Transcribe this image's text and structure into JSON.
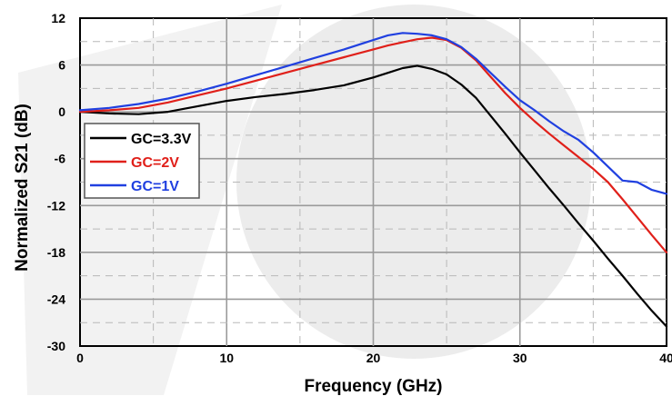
{
  "chart_data": {
    "type": "line",
    "xlabel": "Frequency (GHz)",
    "ylabel": "Normalized S21 (dB)",
    "xlim": [
      0,
      40
    ],
    "ylim": [
      -30,
      12
    ],
    "xticks": [
      "0",
      "10",
      "20",
      "30",
      "40"
    ],
    "yticks": [
      "12",
      "6",
      "0",
      "-6",
      "-12",
      "-18",
      "-24",
      "-30"
    ],
    "grid": true,
    "legend_position": "left",
    "series": [
      {
        "name": "GC=3.3V",
        "color": "#000000",
        "x": [
          0,
          2,
          4,
          6,
          8,
          10,
          12,
          14,
          16,
          18,
          20,
          21,
          22,
          23,
          24,
          25,
          26,
          27,
          28,
          29,
          30,
          31,
          32,
          33,
          34,
          35,
          36,
          37,
          38,
          39,
          40
        ],
        "y": [
          0,
          -0.2,
          -0.3,
          0,
          0.7,
          1.4,
          1.9,
          2.3,
          2.8,
          3.4,
          4.4,
          5.0,
          5.6,
          5.9,
          5.5,
          4.8,
          3.5,
          1.8,
          -0.5,
          -2.8,
          -5.2,
          -7.5,
          -9.8,
          -12.0,
          -14.3,
          -16.5,
          -18.8,
          -21.0,
          -23.3,
          -25.5,
          -27.5
        ]
      },
      {
        "name": "GC=2V",
        "color": "#e0201a",
        "x": [
          0,
          2,
          4,
          6,
          8,
          10,
          12,
          14,
          16,
          18,
          20,
          21,
          22,
          23,
          24,
          25,
          26,
          27,
          28,
          29,
          30,
          31,
          32,
          33,
          34,
          35,
          36,
          37,
          38,
          39,
          40
        ],
        "y": [
          0,
          0.2,
          0.5,
          1.2,
          2.1,
          3.0,
          4.0,
          5.0,
          6.0,
          7.0,
          8.0,
          8.5,
          8.9,
          9.3,
          9.5,
          9.2,
          8.2,
          6.6,
          4.5,
          2.4,
          0.5,
          -1.2,
          -2.8,
          -4.3,
          -5.8,
          -7.3,
          -9.0,
          -11.2,
          -13.5,
          -15.8,
          -18.0
        ]
      },
      {
        "name": "GC=1V",
        "color": "#2040e0",
        "x": [
          0,
          2,
          4,
          6,
          8,
          10,
          12,
          14,
          16,
          18,
          20,
          21,
          22,
          23,
          24,
          25,
          26,
          27,
          28,
          29,
          30,
          31,
          32,
          33,
          34,
          35,
          36,
          37,
          38,
          39,
          40
        ],
        "y": [
          0.2,
          0.5,
          1.0,
          1.7,
          2.6,
          3.6,
          4.7,
          5.8,
          6.9,
          8.0,
          9.2,
          9.8,
          10.1,
          10.0,
          9.8,
          9.3,
          8.3,
          6.8,
          5.0,
          3.2,
          1.5,
          0.2,
          -1.2,
          -2.5,
          -3.6,
          -5.2,
          -7.0,
          -8.8,
          -9.0,
          -10.0,
          -10.5
        ]
      }
    ]
  }
}
